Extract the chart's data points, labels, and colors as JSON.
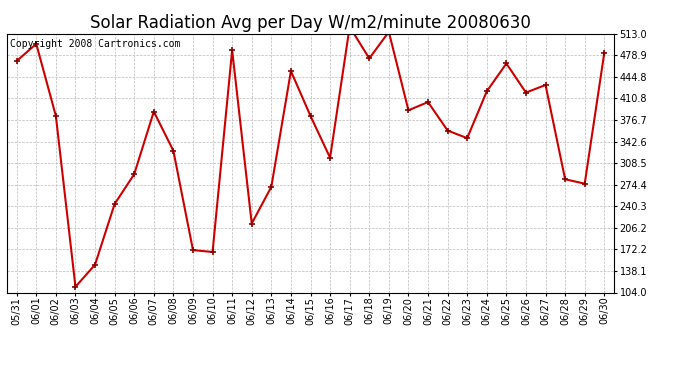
{
  "title": "Solar Radiation Avg per Day W/m2/minute 20080630",
  "copyright": "Copyright 2008 Cartronics.com",
  "dates": [
    "05/31",
    "06/01",
    "06/02",
    "06/03",
    "06/04",
    "06/05",
    "06/06",
    "06/07",
    "06/08",
    "06/09",
    "06/10",
    "06/11",
    "06/12",
    "06/13",
    "06/14",
    "06/15",
    "06/16",
    "06/17",
    "06/18",
    "06/19",
    "06/20",
    "06/21",
    "06/22",
    "06/23",
    "06/24",
    "06/25",
    "06/26",
    "06/27",
    "06/28",
    "06/29",
    "06/30"
  ],
  "values": [
    470,
    497,
    383,
    113,
    148,
    244,
    291,
    390,
    328,
    171,
    168,
    487,
    213,
    271,
    454,
    383,
    317,
    524,
    474,
    516,
    392,
    405,
    360,
    348,
    422,
    466,
    420,
    432,
    283,
    276,
    483
  ],
  "line_color": "#cc0000",
  "marker_color": "#880000",
  "bg_color": "#ffffff",
  "grid_color": "#bbbbbb",
  "ylim": [
    104.0,
    513.0
  ],
  "yticks": [
    104.0,
    138.1,
    172.2,
    206.2,
    240.3,
    274.4,
    308.5,
    342.6,
    376.7,
    410.8,
    444.8,
    478.9,
    513.0
  ],
  "title_fontsize": 12,
  "copyright_fontsize": 7,
  "tick_fontsize": 7,
  "line_width": 1.5,
  "marker_size": 4
}
